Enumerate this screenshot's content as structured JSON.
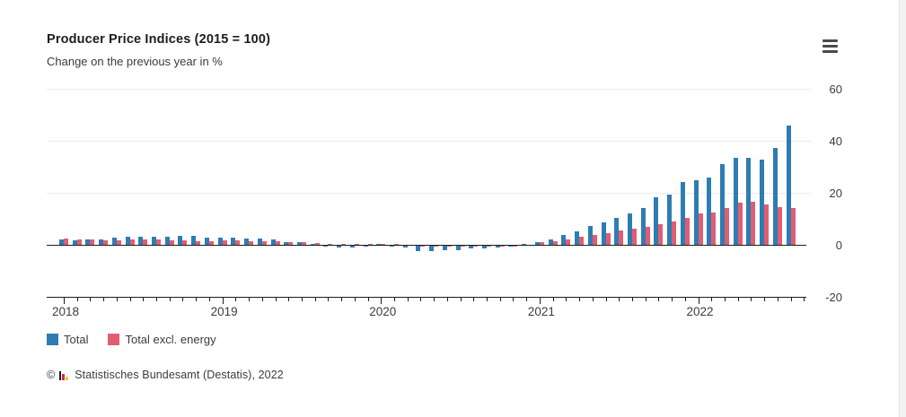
{
  "header": {
    "title": "Producer Price Indices (2015 = 100)",
    "subtitle": "Change on the previous year in %"
  },
  "menu": {
    "tooltip": "Chart context menu"
  },
  "legend": {
    "items": [
      {
        "label": "Total",
        "color": "#2d7db3"
      },
      {
        "label": "Total excl. energy",
        "color": "#e25c72"
      }
    ]
  },
  "footer": {
    "copyright": "©",
    "source": "Statistisches Bundesamt (Destatis), 2022",
    "logo_colors": [
      "#1d1d1b",
      "#cc2e40",
      "#f8c623"
    ]
  },
  "chart_data": {
    "type": "bar",
    "title": "Producer Price Indices (2015 = 100)",
    "subtitle": "Change on the previous year in %",
    "unit": "%",
    "grid": "horizontal",
    "legend_position": "bottom-left",
    "yticks": [
      60,
      40,
      20,
      0,
      -20
    ],
    "ylim": [
      -20,
      65
    ],
    "year_labels": [
      {
        "label": "2018",
        "month_index": 0
      },
      {
        "label": "2019",
        "month_index": 12
      },
      {
        "label": "2020",
        "month_index": 24
      },
      {
        "label": "2021",
        "month_index": 36
      },
      {
        "label": "2022",
        "month_index": 48
      }
    ],
    "x": [
      "2018-01",
      "2018-02",
      "2018-03",
      "2018-04",
      "2018-05",
      "2018-06",
      "2018-07",
      "2018-08",
      "2018-09",
      "2018-10",
      "2018-11",
      "2018-12",
      "2019-01",
      "2019-02",
      "2019-03",
      "2019-04",
      "2019-05",
      "2019-06",
      "2019-07",
      "2019-08",
      "2019-09",
      "2019-10",
      "2019-11",
      "2019-12",
      "2020-01",
      "2020-02",
      "2020-03",
      "2020-04",
      "2020-05",
      "2020-06",
      "2020-07",
      "2020-08",
      "2020-09",
      "2020-10",
      "2020-11",
      "2020-12",
      "2021-01",
      "2021-02",
      "2021-03",
      "2021-04",
      "2021-05",
      "2021-06",
      "2021-07",
      "2021-08",
      "2021-09",
      "2021-10",
      "2021-11",
      "2021-12",
      "2022-01",
      "2022-02",
      "2022-03",
      "2022-04",
      "2022-05",
      "2022-06",
      "2022-07",
      "2022-08"
    ],
    "series": [
      {
        "name": "Total",
        "color": "#2d7db3",
        "values": [
          2.1,
          1.8,
          1.9,
          2.0,
          2.7,
          3.0,
          3.0,
          3.1,
          3.2,
          3.3,
          3.3,
          2.7,
          2.6,
          2.6,
          2.4,
          2.5,
          1.9,
          1.2,
          1.1,
          0.3,
          -0.1,
          -0.6,
          -0.7,
          -0.2,
          0.2,
          -0.1,
          -0.8,
          -1.9,
          -2.2,
          -1.8,
          -1.7,
          -1.2,
          -1.0,
          -0.7,
          -0.5,
          0.2,
          0.9,
          1.9,
          3.7,
          5.2,
          7.2,
          8.5,
          10.4,
          12.0,
          14.2,
          18.4,
          19.2,
          24.2,
          25.0,
          25.9,
          30.9,
          33.5,
          33.6,
          32.7,
          37.2,
          45.8
        ]
      },
      {
        "name": "Total excl. energy",
        "color": "#e25c72",
        "values": [
          2.4,
          2.1,
          1.9,
          1.8,
          1.8,
          1.9,
          2.0,
          1.9,
          1.7,
          1.8,
          1.5,
          1.5,
          1.6,
          1.6,
          1.5,
          1.4,
          1.3,
          1.1,
          0.9,
          0.7,
          0.4,
          0.2,
          0.2,
          0.3,
          0.3,
          0.2,
          0.0,
          -0.2,
          -0.4,
          -0.4,
          -0.3,
          -0.4,
          -0.3,
          -0.2,
          -0.1,
          0.1,
          0.9,
          1.4,
          2.1,
          3.0,
          3.9,
          4.6,
          5.4,
          6.3,
          6.9,
          7.8,
          8.9,
          10.4,
          12.0,
          12.4,
          14.0,
          16.3,
          16.5,
          15.6,
          14.6,
          14.0
        ]
      }
    ]
  }
}
